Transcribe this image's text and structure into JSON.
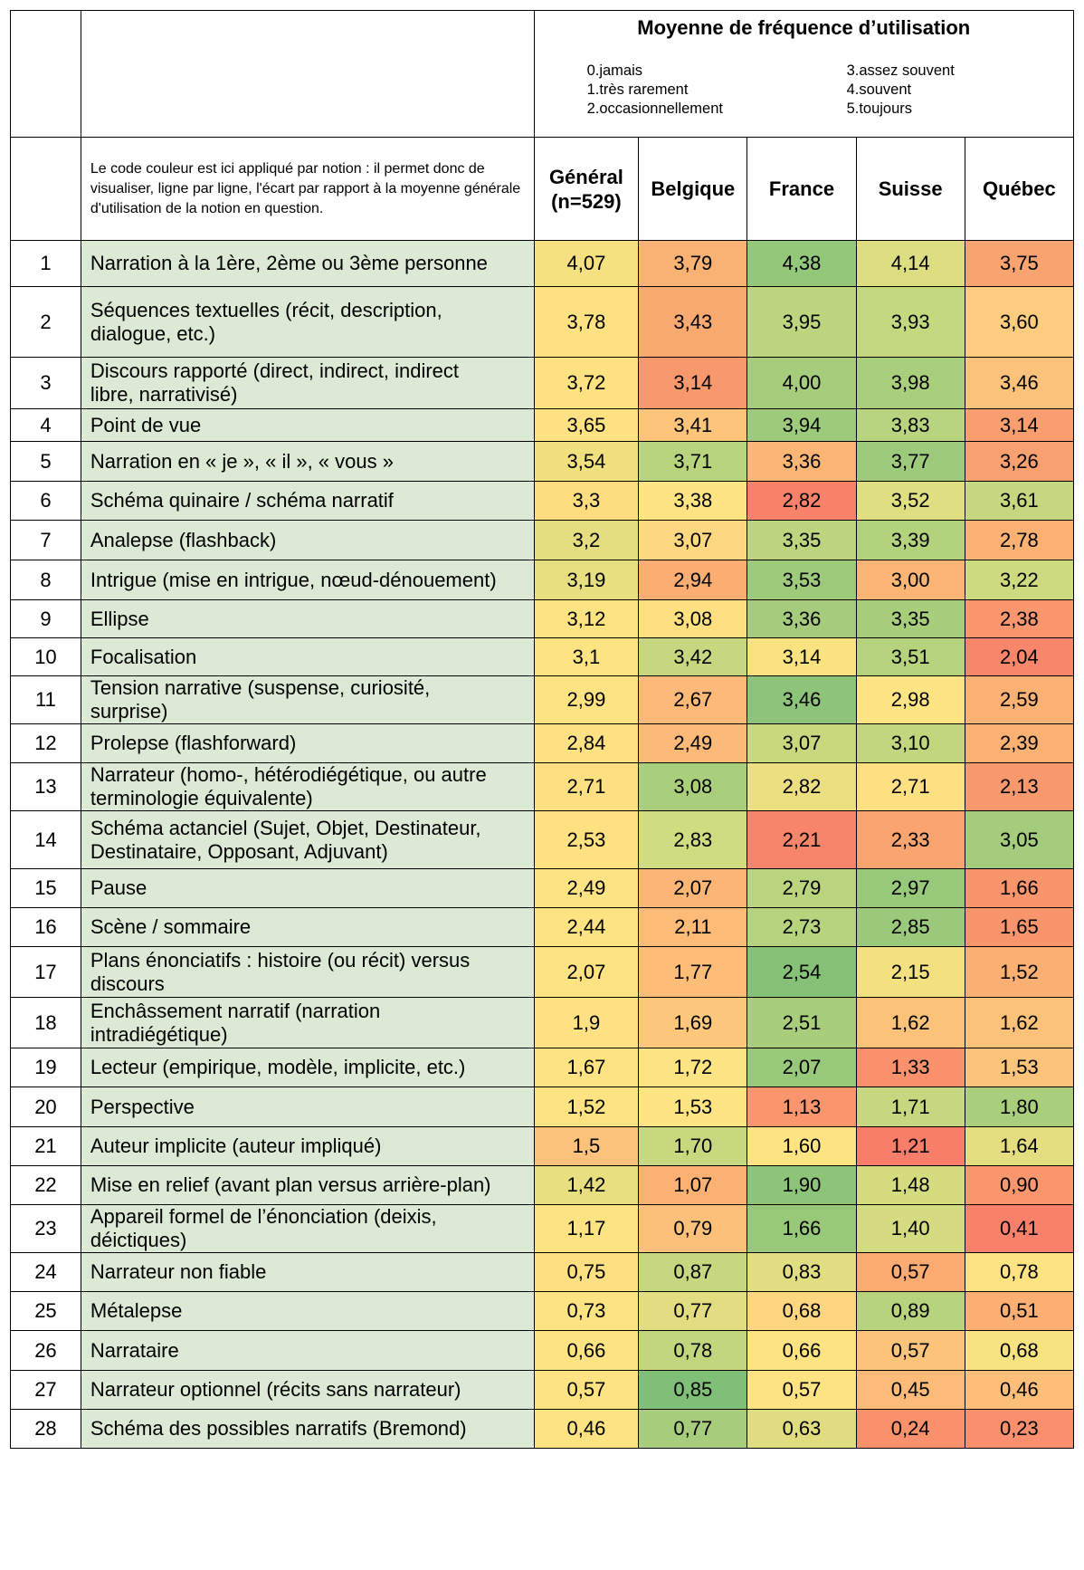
{
  "header": {
    "title": "Moyenne de fréquence d’utilisation",
    "scale_left": [
      "0.jamais",
      "1.très rarement",
      "2.occasionnellement"
    ],
    "scale_right": [
      "3.assez souvent",
      "4.souvent",
      "5.toujours"
    ],
    "note": "Le code couleur est ici appliqué par notion : il permet donc de visualiser, ligne par ligne, l'écart par rapport à la moyenne générale d'utilisation de la notion en question.",
    "columns": [
      {
        "line1": "Général",
        "line2": "(n=529)"
      },
      {
        "line1": "Belgique",
        "line2": ""
      },
      {
        "line1": "France",
        "line2": ""
      },
      {
        "line1": "Suisse",
        "line2": ""
      },
      {
        "line1": "Québec",
        "line2": ""
      }
    ]
  },
  "rows": [
    {
      "num": "1",
      "lines": [
        "Narration à la 1ère, 2ème ou 3ème personne"
      ],
      "values": [
        "4,07",
        "3,79",
        "4,38",
        "4,14",
        "3,75"
      ],
      "colors": [
        "#f5e17f",
        "#f8b273",
        "#93c77a",
        "#dddd81",
        "#f8a370"
      ]
    },
    {
      "num": "2",
      "lines": [
        "Séquences textuelles (récit, description,",
        "dialogue, etc.)"
      ],
      "values": [
        "3,78",
        "3,43",
        "3,95",
        "3,93",
        "3,60"
      ],
      "colors": [
        "#fee282",
        "#f8aa71",
        "#bcd57e",
        "#c3d87f",
        "#fdcc7e"
      ]
    },
    {
      "num": "3",
      "lines": [
        "Discours rapporté (direct, indirect, indirect",
        "libre, narrativisé)"
      ],
      "values": [
        "3,72",
        "3,14",
        "4,00",
        "3,98",
        "3,46"
      ],
      "colors": [
        "#fee282",
        "#f7996d",
        "#a6cd7c",
        "#aacf7c",
        "#fcc27b"
      ]
    },
    {
      "num": "4",
      "lines": [
        "Point de vue"
      ],
      "values": [
        "3,65",
        "3,41",
        "3,94",
        "3,83",
        "3,14"
      ],
      "colors": [
        "#fee182",
        "#fdc57c",
        "#9dca7b",
        "#b9d47e",
        "#f99e6e"
      ]
    },
    {
      "num": "5",
      "lines": [
        "Narration en « je », « il », « vous »"
      ],
      "values": [
        "3,54",
        "3,71",
        "3,36",
        "3,77",
        "3,26"
      ],
      "colors": [
        "#f1e07f",
        "#b8d47d",
        "#fbb575",
        "#9dca7b",
        "#f8a06f"
      ]
    },
    {
      "num": "6",
      "lines": [
        "Schéma quinaire / schéma narratif"
      ],
      "values": [
        "3,3",
        "3,38",
        "2,82",
        "3,52",
        "3,61"
      ],
      "colors": [
        "#fedc80",
        "#fee482",
        "#f8836a",
        "#dfde81",
        "#c5d77f"
      ]
    },
    {
      "num": "7",
      "lines": [
        "Analepse (flashback)"
      ],
      "values": [
        "3,2",
        "3,07",
        "3,35",
        "3,39",
        "2,78"
      ],
      "colors": [
        "#e5de81",
        "#fed880",
        "#bdd57e",
        "#b3d27d",
        "#fbb174"
      ]
    },
    {
      "num": "8",
      "lines": [
        "Intrigue (mise en intrigue, nœud-dénouement)"
      ],
      "values": [
        "3,19",
        "2,94",
        "3,53",
        "3,00",
        "3,22"
      ],
      "colors": [
        "#e8df81",
        "#fbad72",
        "#9dca7b",
        "#fbb675",
        "#cdda7f"
      ]
    },
    {
      "num": "9",
      "lines": [
        "Ellipse"
      ],
      "values": [
        "3,12",
        "3,08",
        "3,36",
        "3,35",
        "2,38"
      ],
      "colors": [
        "#fee382",
        "#fee081",
        "#a5cc7c",
        "#a8ce7c",
        "#f9966d"
      ]
    },
    {
      "num": "10",
      "lines": [
        "Focalisation"
      ],
      "values": [
        "3,1",
        "3,42",
        "3,14",
        "3,51",
        "2,04"
      ],
      "colors": [
        "#fee382",
        "#c6d77f",
        "#f9e381",
        "#b5d37d",
        "#f8866b"
      ]
    },
    {
      "num": "11",
      "lines": [
        "Tension narrative (suspense, curiosité,",
        "surprise)"
      ],
      "values": [
        "2,99",
        "2,67",
        "3,46",
        "2,98",
        "2,59"
      ],
      "colors": [
        "#fee382",
        "#fcb977",
        "#8ec479",
        "#fee482",
        "#fbb174"
      ]
    },
    {
      "num": "12",
      "lines": [
        "Prolepse (flashforward)"
      ],
      "values": [
        "2,84",
        "2,49",
        "3,07",
        "3,10",
        "2,39"
      ],
      "colors": [
        "#fee182",
        "#fcba78",
        "#c9d87f",
        "#c2d67e",
        "#fbb074"
      ]
    },
    {
      "num": "13",
      "lines": [
        "Narrateur (homo-, hétérodiégétique, ou autre",
        "terminologie équivalente)"
      ],
      "values": [
        "2,71",
        "3,08",
        "2,82",
        "2,71",
        "2,13"
      ],
      "colors": [
        "#fee082",
        "#a9ce7c",
        "#ecdf81",
        "#fee082",
        "#f8996d"
      ]
    },
    {
      "num": "14",
      "lines": [
        "Schéma actanciel (Sujet, Objet, Destinateur,",
        "Destinataire, Opposant, Adjuvant)"
      ],
      "values": [
        "2,53",
        "2,83",
        "2,21",
        "2,33",
        "3,05"
      ],
      "colors": [
        "#fee181",
        "#d1db80",
        "#f7856b",
        "#faa56f",
        "#a3cc7c"
      ]
    },
    {
      "num": "15",
      "lines": [
        "Pause"
      ],
      "values": [
        "2,49",
        "2,07",
        "2,79",
        "2,97",
        "1,66"
      ],
      "colors": [
        "#fee382",
        "#fbb675",
        "#bbd57e",
        "#98c87a",
        "#f9956d"
      ]
    },
    {
      "num": "16",
      "lines": [
        "Scène / sommaire"
      ],
      "values": [
        "2,44",
        "2,11",
        "2,73",
        "2,85",
        "1,65"
      ],
      "colors": [
        "#fee382",
        "#fcbc78",
        "#b6d37d",
        "#9bc97b",
        "#f9956d"
      ]
    },
    {
      "num": "17",
      "lines": [
        "Plans énonciatifs : histoire (ou récit) versus",
        "discours"
      ],
      "values": [
        "2,07",
        "1,77",
        "2,54",
        "2,15",
        "1,52"
      ],
      "colors": [
        "#fee382",
        "#fcbd78",
        "#86c178",
        "#f3e181",
        "#fbb073"
      ]
    },
    {
      "num": "18",
      "lines": [
        "Enchâssement narratif (narration",
        "intradiégétique)"
      ],
      "values": [
        "1,9",
        "1,69",
        "2,51",
        "1,62",
        "1,62"
      ],
      "colors": [
        "#fee182",
        "#fdc87c",
        "#a8ce7c",
        "#fcc27a",
        "#fcc27a"
      ]
    },
    {
      "num": "19",
      "lines": [
        "Lecteur (empirique, modèle, implicite, etc.)"
      ],
      "values": [
        "1,67",
        "1,72",
        "2,07",
        "1,33",
        "1,53"
      ],
      "colors": [
        "#fee382",
        "#fbe481",
        "#98c87a",
        "#f9926c",
        "#fcc47b"
      ]
    },
    {
      "num": "20",
      "lines": [
        "Perspective"
      ],
      "values": [
        "1,52",
        "1,53",
        "1,13",
        "1,71",
        "1,80"
      ],
      "colors": [
        "#fee382",
        "#fee482",
        "#f9966d",
        "#c6d87f",
        "#a9ce7c"
      ]
    },
    {
      "num": "21",
      "lines": [
        "Auteur implicite (auteur impliqué)"
      ],
      "values": [
        "1,5",
        "1,70",
        "1,60",
        "1,21",
        "1,64"
      ],
      "colors": [
        "#fcc17a",
        "#c8d87f",
        "#fee382",
        "#f87e69",
        "#e5de81"
      ]
    },
    {
      "num": "22",
      "lines": [
        "Mise en relief (avant plan versus arrière-plan)"
      ],
      "values": [
        "1,42",
        "1,07",
        "1,90",
        "1,48",
        "0,90"
      ],
      "colors": [
        "#e8df81",
        "#fbb074",
        "#8dc479",
        "#d5dc80",
        "#f9966d"
      ]
    },
    {
      "num": "23",
      "lines": [
        "Appareil formel de l’énonciation (deixis,",
        "déictiques)"
      ],
      "values": [
        "1,17",
        "0,79",
        "1,66",
        "1,40",
        "0,41"
      ],
      "colors": [
        "#fee382",
        "#fcc07a",
        "#98c87a",
        "#d4db80",
        "#f9806a"
      ]
    },
    {
      "num": "24",
      "lines": [
        "Narrateur non fiable"
      ],
      "values": [
        "0,75",
        "0,87",
        "0,83",
        "0,57",
        "0,78"
      ],
      "colors": [
        "#fedf81",
        "#c5d77f",
        "#e1dd81",
        "#fbab72",
        "#fee382"
      ]
    },
    {
      "num": "25",
      "lines": [
        "Métalepse"
      ],
      "values": [
        "0,73",
        "0,77",
        "0,68",
        "0,89",
        "0,51"
      ],
      "colors": [
        "#fee382",
        "#e2dd81",
        "#fed680",
        "#b7d37d",
        "#fbaf73"
      ]
    },
    {
      "num": "26",
      "lines": [
        "Narrataire"
      ],
      "values": [
        "0,66",
        "0,78",
        "0,66",
        "0,57",
        "0,68"
      ],
      "colors": [
        "#fee382",
        "#c2d67e",
        "#fee382",
        "#fcc47b",
        "#f8e381"
      ]
    },
    {
      "num": "27",
      "lines": [
        "Narrateur optionnel (récits sans narrateur)"
      ],
      "values": [
        "0,57",
        "0,85",
        "0,57",
        "0,45",
        "0,46"
      ],
      "colors": [
        "#fee382",
        "#7fbf77",
        "#fee382",
        "#fcbb78",
        "#fcbe79"
      ]
    },
    {
      "num": "28",
      "lines": [
        "Schéma des possibles narratifs (Bremond)"
      ],
      "values": [
        "0,46",
        "0,77",
        "0,63",
        "0,24",
        "0,23"
      ],
      "colors": [
        "#fee382",
        "#a7cd7c",
        "#e0dd81",
        "#f9926c",
        "#f98f6c"
      ]
    }
  ]
}
